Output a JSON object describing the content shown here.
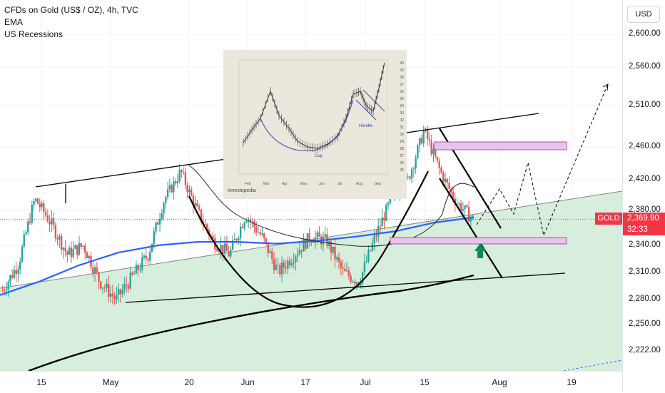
{
  "legend": {
    "title": "CFDs on Gold (US$ / OZ), 4h, TVC",
    "line2": "EMA",
    "line3": "US Recessions"
  },
  "price_scale": {
    "currency": "USD",
    "current_price": "2,369.90",
    "countdown": "32:33",
    "symbol": "GOLD"
  },
  "colors": {
    "up": "#26a69a",
    "down": "#ef5350",
    "ema_short": "#2962ff",
    "recession_fill": "#d8eedd",
    "price_line": "#f23645",
    "zone": "#e7c4e9",
    "arrow": "#0b8a5a"
  },
  "inset": {
    "cup_label": "Cup",
    "handle_label": "Handle",
    "brand": "Investopedia",
    "y_ticks": [
      "40",
      "39",
      "38",
      "37",
      "36",
      "35",
      "34",
      "33",
      "32",
      "31",
      "30",
      "29",
      "28",
      "27",
      "26",
      "25"
    ],
    "x_ticks": [
      "Feb",
      "Mar",
      "Apr",
      "May",
      "Jun",
      "Jul",
      "Aug",
      "Sep"
    ]
  },
  "chart_data": {
    "type": "candlestick",
    "title": "CFDs on Gold (US$ / OZ), 4h, TVC",
    "ylim": [
      2190,
      2640
    ],
    "y_ticks": [
      2600,
      2560,
      2510,
      2460,
      2420,
      2380,
      2340,
      2310,
      2280,
      2250,
      2222
    ],
    "y_tick_labels": [
      "2,600.00",
      "2,560.00",
      "2,510.00",
      "2,460.00",
      "2,420.00",
      "2,380.00",
      "2,340.00",
      "2,310.00",
      "2,280.00",
      "2,250.00",
      "2,222.00"
    ],
    "x_ticks": [
      "15",
      "May",
      "20",
      "Jun",
      "17",
      "Jul",
      "15",
      "Aug",
      "19"
    ],
    "last_price": 2369.9,
    "series": [
      {
        "name": "EMA",
        "values": [
          2285,
          2300,
          2318,
          2332,
          2340,
          2344,
          2344,
          2342,
          2345,
          2350,
          2356,
          2366,
          2372
        ]
      },
      {
        "name": "US Recessions",
        "values": []
      }
    ],
    "candles_close_path": [
      2290,
      2320,
      2395,
      2365,
      2330,
      2340,
      2300,
      2280,
      2305,
      2330,
      2395,
      2430,
      2380,
      2345,
      2330,
      2375,
      2350,
      2310,
      2330,
      2350,
      2345,
      2310,
      2300,
      2350,
      2395,
      2420,
      2480,
      2430,
      2390,
      2370
    ],
    "annotations": {
      "resistance_trendline": [
        [
          2412,
          2490
        ]
      ],
      "support_trendline": [
        [
          2282,
          2300
        ]
      ],
      "cup_low": 2270,
      "supply_zone": [
        2455,
        2468
      ],
      "demand_zone": [
        2343,
        2350
      ],
      "projected_target": 2525
    }
  }
}
